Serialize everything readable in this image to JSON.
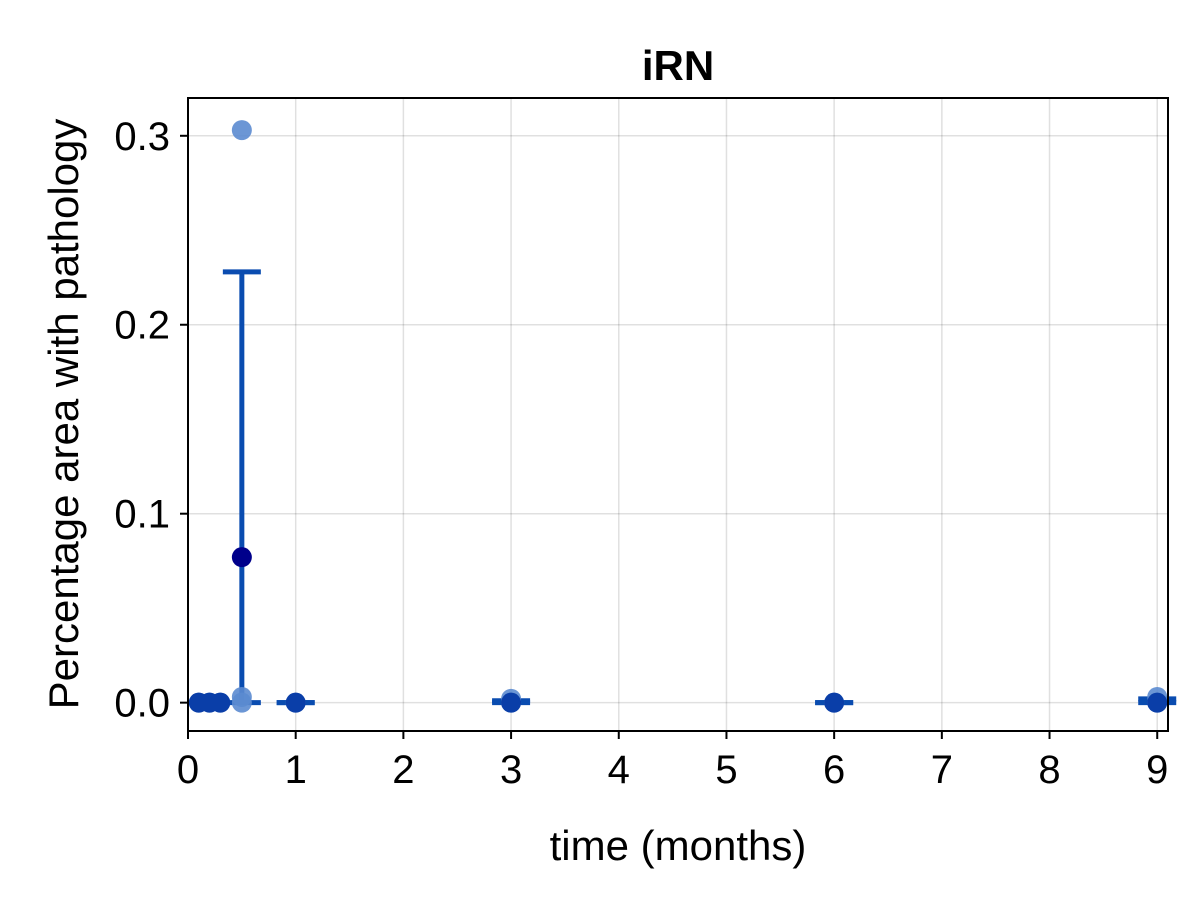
{
  "chart_data": {
    "type": "scatter",
    "title": "iRN",
    "xlabel": "time (months)",
    "ylabel": "Percentage area with pathology",
    "xlim": [
      0,
      9.1
    ],
    "ylim": [
      -0.015,
      0.32
    ],
    "xticks": [
      0,
      1,
      2,
      3,
      4,
      5,
      6,
      7,
      8,
      9
    ],
    "xtick_labels": [
      "0",
      "1",
      "2",
      "3",
      "4",
      "5",
      "6",
      "7",
      "8",
      "9"
    ],
    "yticks": [
      0.0,
      0.1,
      0.2,
      0.3
    ],
    "ytick_labels": [
      "0.0",
      "0.1",
      "0.2",
      "0.3"
    ],
    "grid": true,
    "individual_points": [
      {
        "x": 0.1,
        "y": 0.0
      },
      {
        "x": 0.2,
        "y": 0.0
      },
      {
        "x": 0.3,
        "y": 0.0
      },
      {
        "x": 0.5,
        "y": 0.303
      },
      {
        "x": 0.5,
        "y": 0.003
      },
      {
        "x": 0.5,
        "y": 0.0
      },
      {
        "x": 1.0,
        "y": 0.0
      },
      {
        "x": 3.0,
        "y": 0.002
      },
      {
        "x": 3.0,
        "y": 0.0
      },
      {
        "x": 6.0,
        "y": 0.0
      },
      {
        "x": 9.0,
        "y": 0.003
      },
      {
        "x": 9.0,
        "y": 0.0
      }
    ],
    "means": [
      {
        "x": 0.1,
        "y": 0.0
      },
      {
        "x": 0.2,
        "y": 0.0
      },
      {
        "x": 0.3,
        "y": 0.0
      },
      {
        "x": 0.5,
        "y": 0.077
      },
      {
        "x": 1.0,
        "y": 0.0
      },
      {
        "x": 3.0,
        "y": 0.0
      },
      {
        "x": 6.0,
        "y": 0.0
      },
      {
        "x": 9.0,
        "y": 0.0
      }
    ],
    "error_bars": [
      {
        "x": 0.5,
        "low": 0.0,
        "high": 0.228
      },
      {
        "x": 1.0,
        "low": 0.0,
        "high": 0.0
      },
      {
        "x": 3.0,
        "low": 0.0,
        "high": 0.001
      },
      {
        "x": 6.0,
        "low": 0.0,
        "high": 0.0
      },
      {
        "x": 9.0,
        "low": 0.0,
        "high": 0.002
      }
    ],
    "colors": {
      "points": "#5b8bd0",
      "mean": "#0a3ea8",
      "mean_highlight": "#00008b",
      "error_bar": "#0a4cb0"
    }
  }
}
